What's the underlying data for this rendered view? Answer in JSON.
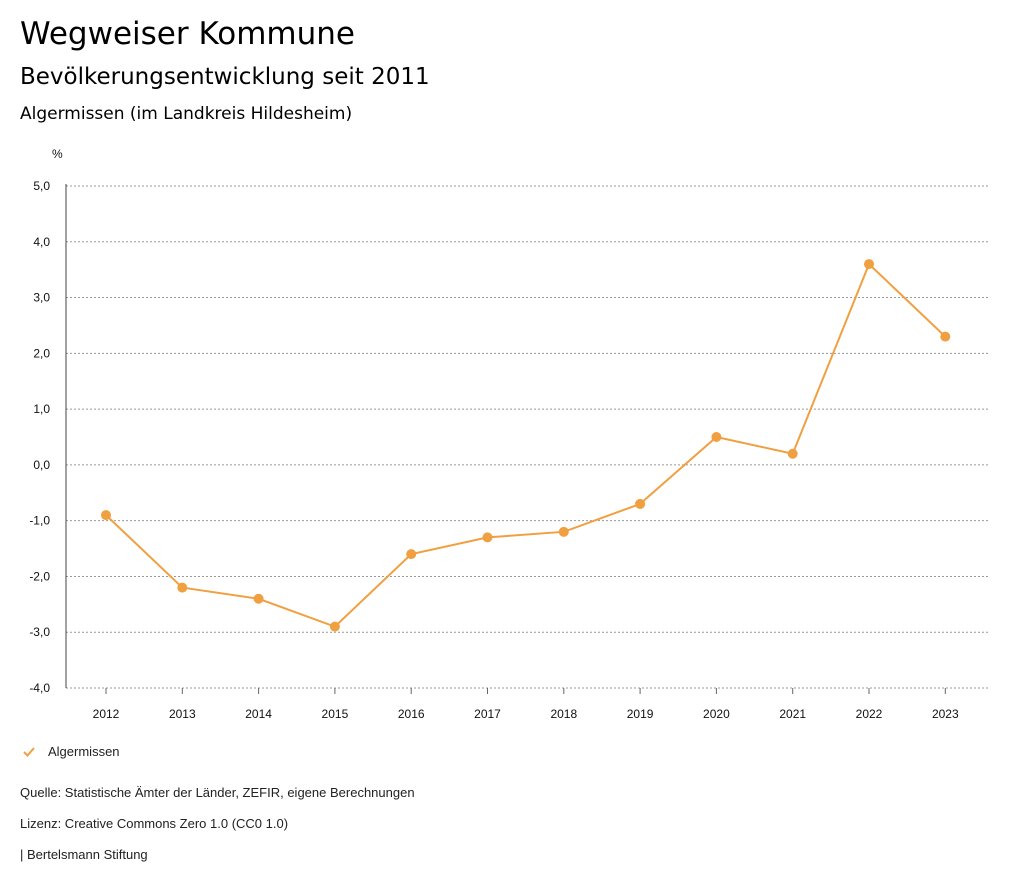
{
  "header": {
    "title": "Wegweiser Kommune",
    "subtitle": "Bevölkerungsentwicklung seit 2011",
    "region": "Algermissen (im Landkreis Hildesheim)"
  },
  "chart_data": {
    "type": "line",
    "y_unit_label": "%",
    "x": [
      "2012",
      "2013",
      "2014",
      "2015",
      "2016",
      "2017",
      "2018",
      "2019",
      "2020",
      "2021",
      "2022",
      "2023"
    ],
    "series": [
      {
        "name": "Algermissen",
        "color": "#f0a040",
        "values": [
          -0.9,
          -2.2,
          -2.4,
          -2.9,
          -1.6,
          -1.3,
          -1.2,
          -0.7,
          0.5,
          0.2,
          3.6,
          2.3
        ]
      }
    ],
    "ylim": [
      -4.0,
      5.0
    ],
    "y_ticks": [
      5.0,
      4.0,
      3.0,
      2.0,
      1.0,
      0.0,
      -1.0,
      -2.0,
      -3.0,
      -4.0
    ],
    "y_tick_labels": [
      "5,0",
      "4,0",
      "3,0",
      "2,0",
      "1,0",
      "0,0",
      "-1,0",
      "-2,0",
      "-3,0",
      "-4,0"
    ],
    "grid": true,
    "legend_position": "bottom-left"
  },
  "legend": {
    "label": "Algermissen",
    "icon": "check-icon"
  },
  "footer": {
    "source": "Quelle: Statistische Ämter der Länder, ZEFIR, eigene Berechnungen",
    "license": "Lizenz: Creative Commons Zero 1.0 (CC0 1.0)",
    "publisher": "| Bertelsmann Stiftung"
  }
}
